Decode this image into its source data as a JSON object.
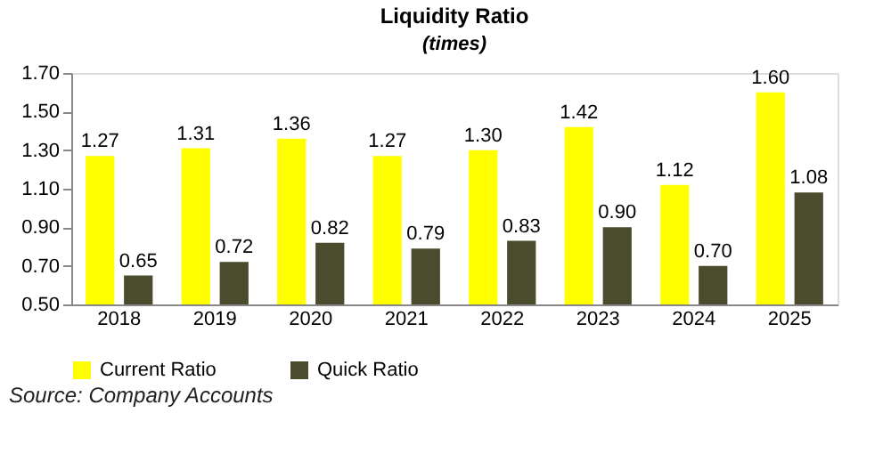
{
  "chart_data": {
    "type": "bar",
    "title": "Liquidity Ratio",
    "subtitle": "(times)",
    "categories": [
      "2018",
      "2019",
      "2020",
      "2021",
      "2022",
      "2023",
      "2024",
      "2025"
    ],
    "series": [
      {
        "name": "Current Ratio",
        "color": "#ffff00",
        "values": [
          1.27,
          1.31,
          1.36,
          1.27,
          1.3,
          1.42,
          1.12,
          1.6
        ],
        "value_labels": [
          "1.27",
          "1.31",
          "1.36",
          "1.27",
          "1.30",
          "1.42",
          "1.12",
          "1.60"
        ]
      },
      {
        "name": "Quick Ratio",
        "color": "#4b4b2d",
        "values": [
          0.65,
          0.72,
          0.82,
          0.79,
          0.83,
          0.9,
          0.7,
          1.08
        ],
        "value_labels": [
          "0.65",
          "0.72",
          "0.82",
          "0.79",
          "0.83",
          "0.90",
          "0.70",
          "1.08"
        ]
      }
    ],
    "ylim": [
      0.5,
      1.7
    ],
    "yticks": [
      {
        "value": 0.5,
        "label": "0.50"
      },
      {
        "value": 0.7,
        "label": "0.70"
      },
      {
        "value": 0.9,
        "label": "0.90"
      },
      {
        "value": 1.1,
        "label": "1.10"
      },
      {
        "value": 1.3,
        "label": "1.30"
      },
      {
        "value": 1.5,
        "label": "1.50"
      },
      {
        "value": 1.7,
        "label": "1.70"
      }
    ],
    "grid": false,
    "legend": "bottom",
    "annotations": [
      "Source:  Company Accounts"
    ]
  }
}
